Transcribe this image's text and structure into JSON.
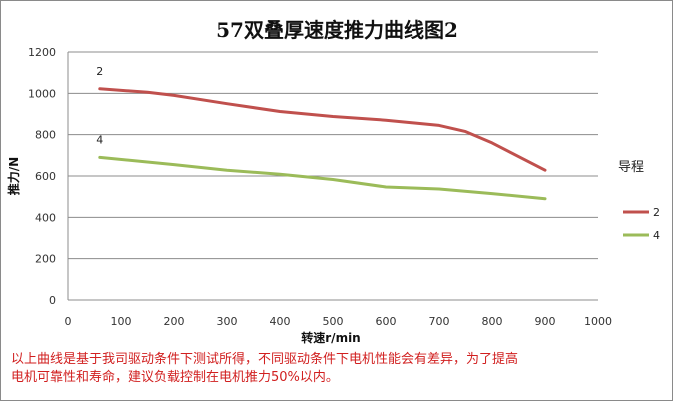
{
  "chart_data": {
    "type": "line",
    "title": "57双叠厚速度推力曲线图2",
    "xlabel": "转速r/min",
    "ylabel": "推力/N",
    "xlim": [
      0,
      1000
    ],
    "ylim": [
      0,
      1200
    ],
    "x_ticks": [
      "0",
      "100",
      "200",
      "300",
      "400",
      "500",
      "600",
      "700",
      "800",
      "900",
      "1000"
    ],
    "y_ticks": [
      "0",
      "200",
      "400",
      "600",
      "800",
      "1000",
      "1200"
    ],
    "grid": "horizontal",
    "legend_title": "导程",
    "legend_position": "right",
    "series": [
      {
        "name": "2",
        "color": "#c0504d",
        "data_label": "2",
        "points": [
          [
            60,
            1022
          ],
          [
            150,
            1005
          ],
          [
            200,
            990
          ],
          [
            300,
            950
          ],
          [
            400,
            912
          ],
          [
            500,
            888
          ],
          [
            600,
            870
          ],
          [
            700,
            845
          ],
          [
            750,
            815
          ],
          [
            800,
            760
          ],
          [
            900,
            628
          ]
        ]
      },
      {
        "name": "4",
        "color": "#9bbb59",
        "data_label": "4",
        "points": [
          [
            60,
            690
          ],
          [
            200,
            655
          ],
          [
            300,
            628
          ],
          [
            400,
            608
          ],
          [
            500,
            583
          ],
          [
            600,
            547
          ],
          [
            700,
            537
          ],
          [
            800,
            515
          ],
          [
            900,
            490
          ]
        ]
      }
    ]
  },
  "footnote": {
    "line1": "以上曲线是基于我司驱动条件下测试所得，不同驱动条件下电机性能会有差异，为了提高",
    "line2": "电机可靠性和寿命，建议负载控制在电机推力50%以内。"
  }
}
